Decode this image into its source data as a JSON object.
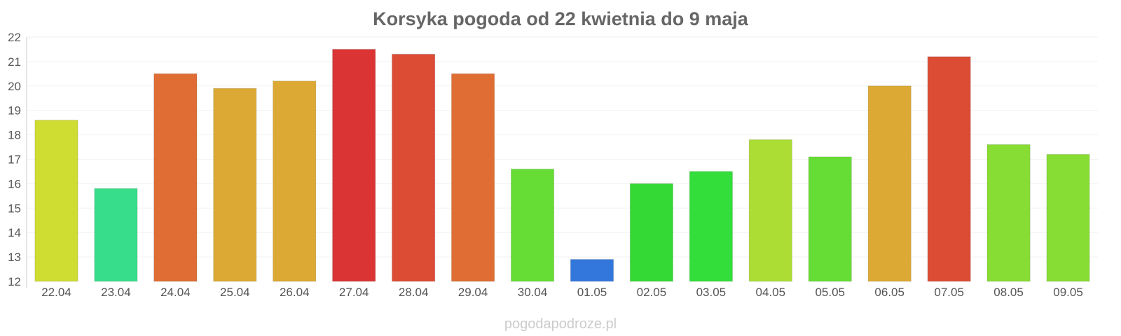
{
  "chart_data": {
    "type": "bar",
    "title": "Korsyka pogoda od 22 kwietnia do 9 maja",
    "xlabel": "",
    "ylabel": "",
    "ylim": [
      12,
      22
    ],
    "yticks": [
      12,
      13,
      14,
      15,
      16,
      17,
      18,
      19,
      20,
      21,
      22
    ],
    "grid": true,
    "categories": [
      "22.04",
      "23.04",
      "24.04",
      "25.04",
      "26.04",
      "27.04",
      "28.04",
      "29.04",
      "30.04",
      "01.05",
      "02.05",
      "03.05",
      "04.05",
      "05.05",
      "06.05",
      "07.05",
      "08.05",
      "09.05"
    ],
    "values": [
      18.6,
      15.8,
      20.5,
      19.9,
      20.2,
      21.5,
      21.3,
      20.5,
      16.6,
      12.9,
      16.0,
      16.5,
      17.8,
      17.1,
      20.0,
      21.2,
      17.6,
      17.2
    ],
    "colors": [
      "#cfdd32",
      "#37dd8a",
      "#df6d34",
      "#dcaa34",
      "#dcaa34",
      "#da3434",
      "#dc4c34",
      "#df6d34",
      "#66dd34",
      "#3377dd",
      "#35d935",
      "#33dd3a",
      "#abdd34",
      "#66dd34",
      "#dcaa34",
      "#dc4c34",
      "#88dd34",
      "#88dd34"
    ]
  },
  "footer": {
    "watermark": "pogodapodroze.pl"
  }
}
